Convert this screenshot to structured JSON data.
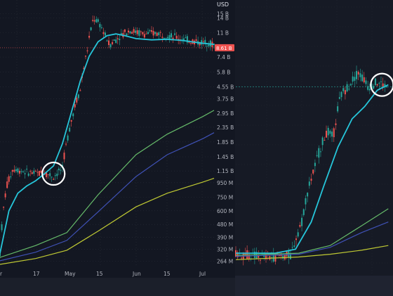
{
  "currency_label": "USD",
  "left_price_tag": "8.61 B",
  "chart_data": [
    {
      "type": "line",
      "panel": "left",
      "scale": "log",
      "y_tick_labels": [
        "15 B",
        "14 B",
        "11 B",
        "7.4 B",
        "5.8 B",
        "4.55 B",
        "3.75 B",
        "2.95 B",
        "2.35 B",
        "1.85 B",
        "1.45 B",
        "1.15 B",
        "950 M",
        "750 M",
        "600 M",
        "480 M",
        "390 M",
        "320 M",
        "264 M"
      ],
      "x_tick_labels": [
        "r",
        "17",
        "May",
        "15",
        "Jun",
        "15",
        "Jul"
      ],
      "ylim": [
        250,
        16000
      ],
      "grid": true,
      "series": [
        {
          "color": "#26c6da",
          "values": [
            {
              "x": "Apr 1",
              "y": 300
            },
            {
              "x": "Apr 5",
              "y": 600
            },
            {
              "x": "Apr 9",
              "y": 800
            },
            {
              "x": "Apr 13",
              "y": 900
            },
            {
              "x": "Apr 17",
              "y": 980
            },
            {
              "x": "Apr 21",
              "y": 1100
            },
            {
              "x": "Apr 25",
              "y": 1250
            },
            {
              "x": "Apr 29",
              "y": 1800
            },
            {
              "x": "May 3",
              "y": 3000
            },
            {
              "x": "May 7",
              "y": 5000
            },
            {
              "x": "May 11",
              "y": 7500
            },
            {
              "x": "May 15",
              "y": 9500
            },
            {
              "x": "May 19",
              "y": 10500
            },
            {
              "x": "May 23",
              "y": 10800
            },
            {
              "x": "May 27",
              "y": 10500
            },
            {
              "x": "Jun 1",
              "y": 10000
            },
            {
              "x": "Jun 8",
              "y": 9800
            },
            {
              "x": "Jun 15",
              "y": 9900
            },
            {
              "x": "Jun 22",
              "y": 9700
            },
            {
              "x": "Jun 30",
              "y": 9300
            },
            {
              "x": "Jul 6",
              "y": 9100
            }
          ]
        },
        {
          "color": "#66bb6a",
          "values": [
            {
              "x": "Apr 1",
              "y": 280
            },
            {
              "x": "Apr 17",
              "y": 340
            },
            {
              "x": "May 1",
              "y": 420
            },
            {
              "x": "May 15",
              "y": 780
            },
            {
              "x": "Jun 1",
              "y": 1500
            },
            {
              "x": "Jun 15",
              "y": 2100
            },
            {
              "x": "Jul 1",
              "y": 2800
            },
            {
              "x": "Jul 6",
              "y": 3100
            }
          ]
        },
        {
          "color": "#3f51b5",
          "values": [
            {
              "x": "Apr 1",
              "y": 265
            },
            {
              "x": "Apr 17",
              "y": 305
            },
            {
              "x": "May 1",
              "y": 370
            },
            {
              "x": "May 15",
              "y": 590
            },
            {
              "x": "Jun 1",
              "y": 1050
            },
            {
              "x": "Jun 15",
              "y": 1500
            },
            {
              "x": "Jul 1",
              "y": 1950
            },
            {
              "x": "Jul 6",
              "y": 2150
            }
          ]
        },
        {
          "color": "#c0ca33",
          "values": [
            {
              "x": "Apr 1",
              "y": 250
            },
            {
              "x": "Apr 17",
              "y": 275
            },
            {
              "x": "May 1",
              "y": 315
            },
            {
              "x": "May 15",
              "y": 430
            },
            {
              "x": "Jun 1",
              "y": 640
            },
            {
              "x": "Jun 15",
              "y": 800
            },
            {
              "x": "Jul 1",
              "y": 960
            },
            {
              "x": "Jul 6",
              "y": 1020
            }
          ]
        }
      ],
      "highlight_circle": {
        "x": "Apr 25",
        "y": 1100
      },
      "price_line": 8610
    },
    {
      "type": "line",
      "panel": "right",
      "scale": "log",
      "y_tick_labels": [],
      "x_tick_labels": [],
      "ylim": [
        250,
        16000
      ],
      "grid": true,
      "series": [
        {
          "color": "#26c6da",
          "values": [
            {
              "x": 0.0,
              "y": 300
            },
            {
              "x": 0.25,
              "y": 300
            },
            {
              "x": 0.38,
              "y": 320
            },
            {
              "x": 0.48,
              "y": 500
            },
            {
              "x": 0.56,
              "y": 900
            },
            {
              "x": 0.65,
              "y": 1700
            },
            {
              "x": 0.74,
              "y": 2700
            },
            {
              "x": 0.82,
              "y": 3300
            },
            {
              "x": 0.9,
              "y": 4300
            },
            {
              "x": 0.97,
              "y": 4700
            }
          ]
        },
        {
          "color": "#66bb6a",
          "values": [
            {
              "x": 0.0,
              "y": 290
            },
            {
              "x": 0.4,
              "y": 300
            },
            {
              "x": 0.6,
              "y": 340
            },
            {
              "x": 0.8,
              "y": 470
            },
            {
              "x": 0.97,
              "y": 620
            }
          ]
        },
        {
          "color": "#3f51b5",
          "values": [
            {
              "x": 0.0,
              "y": 285
            },
            {
              "x": 0.4,
              "y": 295
            },
            {
              "x": 0.6,
              "y": 330
            },
            {
              "x": 0.8,
              "y": 420
            },
            {
              "x": 0.97,
              "y": 500
            }
          ]
        },
        {
          "color": "#c0ca33",
          "values": [
            {
              "x": 0.0,
              "y": 270
            },
            {
              "x": 0.4,
              "y": 282
            },
            {
              "x": 0.6,
              "y": 295
            },
            {
              "x": 0.8,
              "y": 315
            },
            {
              "x": 0.97,
              "y": 340
            }
          ]
        }
      ],
      "highlight_circle": {
        "x": 0.93,
        "y": 4700
      },
      "price_line": 4550
    }
  ]
}
